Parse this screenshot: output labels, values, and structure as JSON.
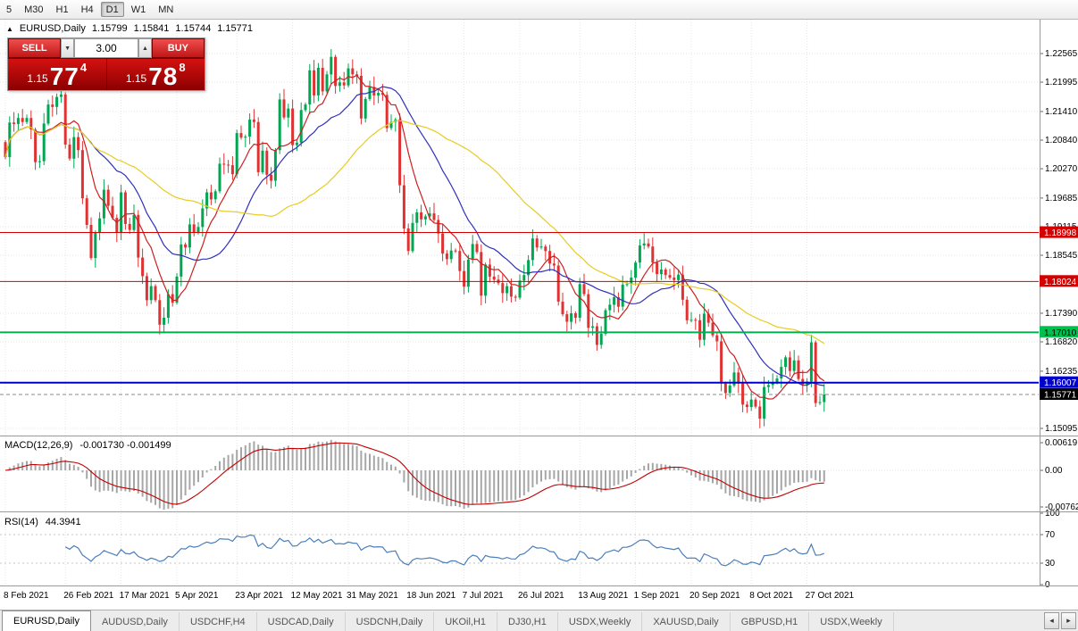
{
  "toolbar": {
    "timeframes": [
      {
        "label": "5",
        "active": false
      },
      {
        "label": "M30",
        "active": false
      },
      {
        "label": "H1",
        "active": false
      },
      {
        "label": "H4",
        "active": false
      },
      {
        "label": "D1",
        "active": true
      },
      {
        "label": "W1",
        "active": false
      },
      {
        "label": "MN",
        "active": false
      }
    ]
  },
  "chart": {
    "header": {
      "collapse_icon": "▲",
      "symbol": "EURUSD,Daily",
      "open": "1.15799",
      "high": "1.15841",
      "low": "1.15744",
      "close": "1.15771"
    },
    "one_click": {
      "sell_label": "SELL",
      "buy_label": "BUY",
      "lot": "3.00",
      "spin_down_icon": "▼",
      "spin_up_icon": "▲",
      "sell_price": {
        "base": "1.15",
        "big": "77",
        "sup": "4"
      },
      "buy_price": {
        "base": "1.15",
        "big": "78",
        "sup": "8"
      }
    },
    "price_axis": [
      1.22565,
      1.21995,
      1.2141,
      1.2084,
      1.2027,
      1.19685,
      1.19115,
      1.18545,
      1.1739,
      1.1682,
      1.16235,
      1.15095
    ],
    "hlines": [
      {
        "price": 1.18998,
        "label": "1.18998",
        "line": "#d40000",
        "w": 1,
        "badge": "#d40000",
        "text": "#ffffff"
      },
      {
        "price": 1.18024,
        "label": "1.18024",
        "line": "#d40000",
        "w": 1,
        "badge": "#d40000",
        "text": "#ffffff"
      },
      {
        "price": 1.1701,
        "label": "1.17010",
        "line": "#00b050",
        "w": 2,
        "badge": "#00c050",
        "text": "#000000"
      },
      {
        "price": 1.16007,
        "label": "1.16007",
        "line": "#0000cc",
        "w": 2,
        "badge": "#0000cc",
        "text": "#ffffff"
      },
      {
        "price": 1.15771,
        "label": "1.15771",
        "line": "#888888",
        "w": 1,
        "dash": "4 3",
        "badge": "#000000",
        "text": "#ffffff"
      }
    ],
    "date_axis": [
      {
        "label": "8 Feb 2021",
        "idx": 0
      },
      {
        "label": "26 Feb 2021",
        "idx": 14
      },
      {
        "label": "17 Mar 2021",
        "idx": 27
      },
      {
        "label": "5 Apr 2021",
        "idx": 40
      },
      {
        "label": "23 Apr 2021",
        "idx": 54
      },
      {
        "label": "12 May 2021",
        "idx": 67
      },
      {
        "label": "31 May 2021",
        "idx": 80
      },
      {
        "label": "18 Jun 2021",
        "idx": 94
      },
      {
        "label": "7 Jul 2021",
        "idx": 107
      },
      {
        "label": "26 Jul 2021",
        "idx": 120
      },
      {
        "label": "13 Aug 2021",
        "idx": 134
      },
      {
        "label": "1 Sep 2021",
        "idx": 147
      },
      {
        "label": "20 Sep 2021",
        "idx": 160
      },
      {
        "label": "8 Oct 2021",
        "idx": 174
      },
      {
        "label": "27 Oct 2021",
        "idx": 187
      }
    ],
    "series": {
      "type": "candlestick",
      "first_open": 1.208,
      "closes": [
        1.205,
        1.2119,
        1.2116,
        1.2128,
        1.212,
        1.2128,
        1.2105,
        1.204,
        1.2042,
        1.2117,
        1.2155,
        1.215,
        1.217,
        1.2175,
        1.2075,
        1.2047,
        1.209,
        1.2064,
        1.1968,
        1.1915,
        1.1849,
        1.19,
        1.1928,
        1.1985,
        1.1953,
        1.1929,
        1.19,
        1.198,
        1.1917,
        1.1905,
        1.1935,
        1.185,
        1.1813,
        1.1765,
        1.1793,
        1.1765,
        1.1716,
        1.173,
        1.1777,
        1.176,
        1.1812,
        1.1876,
        1.187,
        1.1916,
        1.19,
        1.1911,
        1.1948,
        1.198,
        1.1966,
        1.1982,
        1.2037,
        1.2035,
        1.2034,
        1.2016,
        1.2098,
        1.2089,
        1.2091,
        1.2125,
        1.212,
        1.202,
        1.2063,
        1.2015,
        1.2003,
        1.2064,
        1.2165,
        1.2129,
        1.2147,
        1.2074,
        1.2079,
        1.2144,
        1.2155,
        1.2223,
        1.2173,
        1.2228,
        1.2181,
        1.2215,
        1.225,
        1.2192,
        1.2199,
        1.2193,
        1.2227,
        1.2215,
        1.2212,
        1.2127,
        1.2166,
        1.219,
        1.2173,
        1.2178,
        1.2174,
        1.2108,
        1.212,
        1.2125,
        1.1994,
        1.1908,
        1.1863,
        1.1919,
        1.194,
        1.1926,
        1.1932,
        1.1938,
        1.1925,
        1.1898,
        1.1858,
        1.1847,
        1.1864,
        1.1863,
        1.1823,
        1.1792,
        1.1846,
        1.1877,
        1.1861,
        1.1774,
        1.1836,
        1.1812,
        1.1806,
        1.1799,
        1.1779,
        1.1793,
        1.1772,
        1.177,
        1.1804,
        1.1815,
        1.1845,
        1.1888,
        1.187,
        1.1872,
        1.1863,
        1.1838,
        1.1834,
        1.1762,
        1.1737,
        1.1722,
        1.1739,
        1.173,
        1.1797,
        1.1777,
        1.171,
        1.1713,
        1.1676,
        1.1698,
        1.1745,
        1.1756,
        1.1771,
        1.1752,
        1.1796,
        1.1797,
        1.181,
        1.184,
        1.1874,
        1.1878,
        1.1872,
        1.184,
        1.1817,
        1.1826,
        1.1815,
        1.181,
        1.1805,
        1.1816,
        1.1766,
        1.1725,
        1.1726,
        1.1725,
        1.1686,
        1.1738,
        1.172,
        1.1695,
        1.1683,
        1.1599,
        1.158,
        1.1595,
        1.1621,
        1.1599,
        1.1557,
        1.1552,
        1.1567,
        1.1553,
        1.1529,
        1.1592,
        1.1596,
        1.1601,
        1.1609,
        1.1632,
        1.1651,
        1.1624,
        1.1645,
        1.1608,
        1.1597,
        1.1603,
        1.1681,
        1.156,
        1.1562,
        1.15771
      ]
    },
    "ma": [
      {
        "period": 8,
        "color": "#cc2020"
      },
      {
        "period": 20,
        "color": "#3030c0"
      },
      {
        "period": 45,
        "color": "#e8cc20"
      }
    ],
    "macd": {
      "title": "MACD(12,26,9)",
      "values": "-0.001730 -0.001499",
      "axis": [
        {
          "v": 0.00619,
          "label": "0.00619"
        },
        {
          "v": 0,
          "label": "0.00"
        },
        {
          "v": -0.00762,
          "label": "-0.00762"
        }
      ]
    },
    "rsi": {
      "title": "RSI(14)",
      "value": "44.3941",
      "levels": [
        70,
        30
      ],
      "axis": [
        {
          "v": 100,
          "label": "100"
        },
        {
          "v": 70,
          "label": "70"
        },
        {
          "v": 30,
          "label": "30"
        },
        {
          "v": 0,
          "label": "0"
        }
      ]
    }
  },
  "colors": {
    "bull": "#00a651",
    "bear": "#e03232",
    "macd_hist": "#a6a6a6",
    "macd_signal": "#c00000",
    "rsi": "#4a7ebb"
  },
  "tabs": {
    "items": [
      {
        "label": "EURUSD,Daily",
        "active": true
      },
      {
        "label": "AUDUSD,Daily",
        "active": false
      },
      {
        "label": "USDCHF,H4",
        "active": false
      },
      {
        "label": "USDCAD,Daily",
        "active": false
      },
      {
        "label": "USDCNH,Daily",
        "active": false
      },
      {
        "label": "UKOil,H1",
        "active": false
      },
      {
        "label": "DJ30,H1",
        "active": false
      },
      {
        "label": "USDX,Weekly",
        "active": false
      },
      {
        "label": "XAUUSD,Daily",
        "active": false
      },
      {
        "label": "GBPUSD,H1",
        "active": false
      },
      {
        "label": "USDX,Weekly",
        "active": false
      }
    ],
    "scroll_left_icon": "◂",
    "scroll_right_icon": "▸"
  }
}
